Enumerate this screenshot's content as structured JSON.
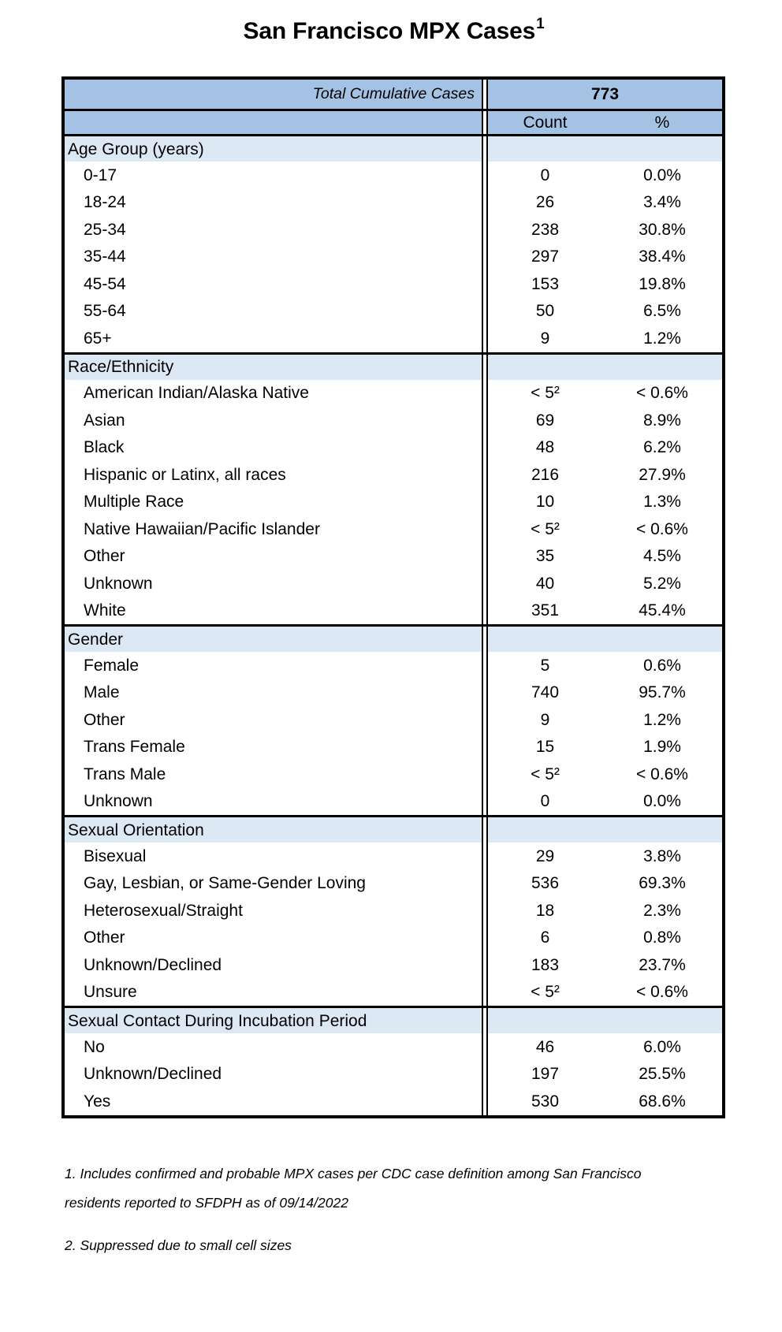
{
  "title": {
    "text": "San Francisco MPX Cases",
    "superscript": "1"
  },
  "table": {
    "header": {
      "total_label": "Total Cumulative Cases",
      "total_value": "773",
      "count_label": "Count",
      "percent_label": "%"
    },
    "sections": [
      {
        "label": "Age Group (years)",
        "rows": [
          {
            "label": "0-17",
            "count": "0",
            "percent": "0.0%"
          },
          {
            "label": "18-24",
            "count": "26",
            "percent": "3.4%"
          },
          {
            "label": "25-34",
            "count": "238",
            "percent": "30.8%"
          },
          {
            "label": "35-44",
            "count": "297",
            "percent": "38.4%"
          },
          {
            "label": "45-54",
            "count": "153",
            "percent": "19.8%"
          },
          {
            "label": "55-64",
            "count": "50",
            "percent": "6.5%"
          },
          {
            "label": "65+",
            "count": "9",
            "percent": "1.2%"
          }
        ]
      },
      {
        "label": "Race/Ethnicity",
        "rows": [
          {
            "label": "American Indian/Alaska Native",
            "count": "< 5²",
            "percent": "< 0.6%"
          },
          {
            "label": "Asian",
            "count": "69",
            "percent": "8.9%"
          },
          {
            "label": "Black",
            "count": "48",
            "percent": "6.2%"
          },
          {
            "label": "Hispanic or Latinx, all races",
            "count": "216",
            "percent": "27.9%"
          },
          {
            "label": "Multiple Race",
            "count": "10",
            "percent": "1.3%"
          },
          {
            "label": "Native Hawaiian/Pacific Islander",
            "count": "< 5²",
            "percent": "< 0.6%"
          },
          {
            "label": "Other",
            "count": "35",
            "percent": "4.5%"
          },
          {
            "label": "Unknown",
            "count": "40",
            "percent": "5.2%"
          },
          {
            "label": "White",
            "count": "351",
            "percent": "45.4%"
          }
        ]
      },
      {
        "label": "Gender",
        "rows": [
          {
            "label": "Female",
            "count": "5",
            "percent": "0.6%"
          },
          {
            "label": "Male",
            "count": "740",
            "percent": "95.7%"
          },
          {
            "label": "Other",
            "count": "9",
            "percent": "1.2%"
          },
          {
            "label": "Trans Female",
            "count": "15",
            "percent": "1.9%"
          },
          {
            "label": "Trans Male",
            "count": "< 5²",
            "percent": "< 0.6%"
          },
          {
            "label": "Unknown",
            "count": "0",
            "percent": "0.0%"
          }
        ]
      },
      {
        "label": "Sexual Orientation",
        "rows": [
          {
            "label": "Bisexual",
            "count": "29",
            "percent": "3.8%"
          },
          {
            "label": "Gay, Lesbian, or Same-Gender Loving",
            "count": "536",
            "percent": "69.3%"
          },
          {
            "label": "Heterosexual/Straight",
            "count": "18",
            "percent": "2.3%"
          },
          {
            "label": "Other",
            "count": "6",
            "percent": "0.8%"
          },
          {
            "label": "Unknown/Declined",
            "count": "183",
            "percent": "23.7%"
          },
          {
            "label": "Unsure",
            "count": "< 5²",
            "percent": "< 0.6%"
          }
        ]
      },
      {
        "label": "Sexual Contact During Incubation Period",
        "rows": [
          {
            "label": "No",
            "count": "46",
            "percent": "6.0%"
          },
          {
            "label": "Unknown/Declined",
            "count": "197",
            "percent": "25.5%"
          },
          {
            "label": "Yes",
            "count": "530",
            "percent": "68.6%"
          }
        ]
      }
    ]
  },
  "footnotes": [
    "1. Includes confirmed and probable MPX cases per CDC case definition among San Francisco residents reported to SFDPH as of  09/14/2022",
    "2. Suppressed due to small cell sizes"
  ],
  "colors": {
    "header_blue": "#a3c2e4",
    "section_blue": "#dde8f5",
    "border_black": "#000000"
  }
}
